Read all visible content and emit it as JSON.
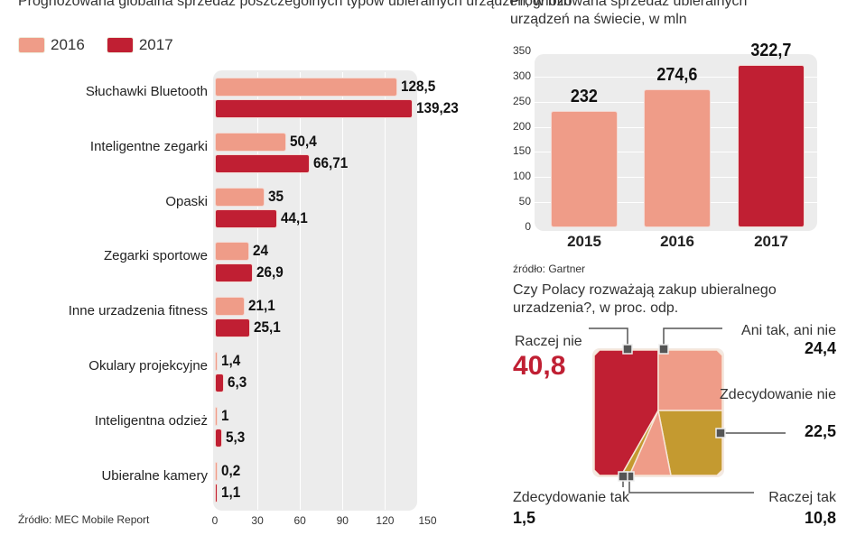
{
  "chart_data": [
    {
      "type": "bar",
      "orientation": "horizontal",
      "title": "Prognozowana globalna sprzedaż poszczególnych typów ubieralnych urządzeń, w mln",
      "categories": [
        "Słuchawki Bluetooth",
        "Inteligentne zegarki",
        "Opaski",
        "Zegarki sportowe",
        "Inne urzadzenia fitness",
        "Okulary projekcyjne",
        "Inteligentna odzież",
        "Ubieralne kamery"
      ],
      "series": [
        {
          "name": "2016",
          "color": "#ef9c88",
          "values": [
            128.5,
            50.4,
            35,
            24,
            21.1,
            1.4,
            1,
            0.2
          ],
          "labels": [
            "128,5",
            "50,4",
            "35",
            "24",
            "21,1",
            "1,4",
            "1",
            "0,2"
          ]
        },
        {
          "name": "2017",
          "color": "#c01f33",
          "values": [
            139.23,
            66.71,
            44.1,
            26.9,
            25.1,
            6.3,
            5.3,
            1.1
          ],
          "labels": [
            "139,23",
            "66,71",
            "44,1",
            "26,9",
            "25,1",
            "6,3",
            "5,3",
            "1,1"
          ]
        }
      ],
      "xlim": [
        0,
        150
      ],
      "xticks": [
        "0",
        "30",
        "60",
        "90",
        "120",
        "150"
      ],
      "grid": true,
      "legend": "top-left",
      "source": "Źródło: MEC Mobile Report"
    },
    {
      "type": "bar",
      "title": "Prognozowana sprzedaż ubieralnych urządzeń na świecie, w mln",
      "categories": [
        "2015",
        "2016",
        "2017"
      ],
      "values": [
        232,
        274.6,
        322.7
      ],
      "labels": [
        "232",
        "274,6",
        "322,7"
      ],
      "colors": [
        "#ef9c88",
        "#ef9c88",
        "#c01f33"
      ],
      "ylim": [
        0,
        350
      ],
      "yticks": [
        "0",
        "50",
        "100",
        "150",
        "200",
        "250",
        "300",
        "350"
      ],
      "grid": true,
      "source": "źródło: Gartner"
    },
    {
      "type": "pie",
      "shape": "square",
      "title": "Czy Polacy rozważają zakup ubieralnego urzadzenia?, w proc. odp.",
      "slices": [
        {
          "label": "Raczej nie",
          "value": 40.8,
          "text": "40,8",
          "color": "#c01f33"
        },
        {
          "label": "Ani tak, ani nie",
          "value": 24.4,
          "text": "24,4",
          "color": "#ef9c88"
        },
        {
          "label": "Zdecydowanie nie",
          "value": 22.5,
          "text": "22,5",
          "color": "#c49a30"
        },
        {
          "label": "Raczej tak",
          "value": 10.8,
          "text": "10,8",
          "color": "#ef9c88"
        },
        {
          "label": "Zdecydowanie tak",
          "value": 1.5,
          "text": "1,5",
          "color": "#c49a30"
        }
      ]
    }
  ]
}
